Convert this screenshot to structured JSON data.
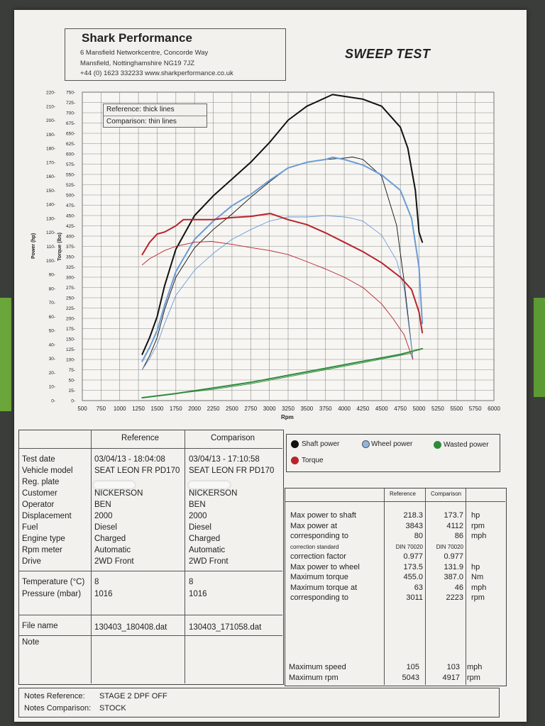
{
  "header": {
    "company": "Shark Performance",
    "address1": "6 Mansfield Networkcentre, Concorde Way",
    "address2": "Mansfield, Nottinghamshire NG19 7JZ",
    "contact": "+44 (0) 1623 332233 www.sharkperformance.co.uk",
    "report_title": "SWEEP TEST"
  },
  "chart_legend": {
    "reference": "Reference: thick lines",
    "comparison": "Comparison: thin lines"
  },
  "series_legend": {
    "shaft": "Shaft power",
    "wheel": "Wheel power",
    "wasted": "Wasted power",
    "torque": "Torque"
  },
  "colors": {
    "shaft": "#111111",
    "wheel": "#6b9bd6",
    "wasted": "#2e8b3a",
    "torque": "#b8232a"
  },
  "chart_data": {
    "type": "line",
    "xlabel": "Rpm",
    "ylabel_power": "Power (hp)",
    "ylabel_torque": "Torque (lbs)",
    "xlim": [
      500,
      6000
    ],
    "power_ylim": [
      0,
      220
    ],
    "torque_ylim": [
      0,
      750
    ],
    "x_ticks": [
      "500",
      "750",
      "1000",
      "1250",
      "1500",
      "1750",
      "2000",
      "2250",
      "2500",
      "2750",
      "3000",
      "3250",
      "3500",
      "3750",
      "4000",
      "4250",
      "4500",
      "4750",
      "5000",
      "5250",
      "5500",
      "5750",
      "6000"
    ],
    "power_ticks": [
      "0",
      "10",
      "20",
      "30",
      "40",
      "50",
      "60",
      "70",
      "80",
      "90",
      "100",
      "110",
      "120",
      "130",
      "140",
      "150",
      "160",
      "170",
      "180",
      "190",
      "200",
      "210",
      "220"
    ],
    "torque_ticks": [
      "0",
      "25",
      "50",
      "75",
      "100",
      "125",
      "150",
      "175",
      "200",
      "225",
      "250",
      "275",
      "300",
      "325",
      "350",
      "375",
      "400",
      "425",
      "450",
      "475",
      "500",
      "525",
      "550",
      "575",
      "600",
      "625",
      "650",
      "675",
      "700",
      "725",
      "750"
    ],
    "grid": true,
    "series": [
      {
        "name": "Shaft power",
        "axis": "power",
        "style": "thick",
        "color": "#111111",
        "x": [
          1300,
          1400,
          1500,
          1600,
          1750,
          2000,
          2250,
          2500,
          2750,
          3000,
          3250,
          3500,
          3750,
          3843,
          4000,
          4250,
          4500,
          4750,
          4850,
          4950,
          5000,
          5043
        ],
        "y": [
          33,
          45,
          60,
          82,
          108,
          132,
          146,
          158,
          170,
          184,
          200,
          210,
          216,
          218.3,
          217,
          215,
          210,
          195,
          180,
          150,
          120,
          113
        ]
      },
      {
        "name": "Shaft power",
        "axis": "power",
        "style": "thin",
        "color": "#111111",
        "x": [
          1300,
          1400,
          1500,
          1600,
          1750,
          2000,
          2250,
          2500,
          2750,
          3000,
          3250,
          3500,
          3750,
          4000,
          4112,
          4250,
          4500,
          4700,
          4800,
          4917
        ],
        "y": [
          22,
          32,
          45,
          65,
          88,
          109,
          122,
          133,
          145,
          156,
          166,
          170,
          172,
          173,
          173.7,
          172,
          160,
          125,
          85,
          30
        ]
      },
      {
        "name": "Wheel power",
        "axis": "power",
        "style": "thick",
        "color": "#6b9bd6",
        "x": [
          1300,
          1400,
          1500,
          1600,
          1750,
          2000,
          2250,
          2500,
          2750,
          3000,
          3250,
          3500,
          3750,
          3843,
          4000,
          4250,
          4500,
          4750,
          4900,
          5000,
          5043
        ],
        "y": [
          28,
          38,
          50,
          68,
          92,
          115,
          128,
          139,
          147,
          157,
          166,
          170,
          172,
          173.5,
          172,
          168,
          161,
          150,
          130,
          95,
          55
        ]
      },
      {
        "name": "Wheel power",
        "axis": "power",
        "style": "thin",
        "color": "#6b9bd6",
        "x": [
          1300,
          1400,
          1500,
          1600,
          1750,
          2000,
          2250,
          2500,
          2750,
          3000,
          3250,
          3500,
          3750,
          4000,
          4112,
          4250,
          4500,
          4700,
          4800,
          4917
        ],
        "y": [
          22,
          30,
          40,
          55,
          75,
          93,
          105,
          115,
          122,
          128,
          131,
          131,
          131.9,
          131,
          130,
          128,
          118,
          100,
          80,
          30
        ]
      },
      {
        "name": "Torque",
        "axis": "torque",
        "style": "thick",
        "color": "#b8232a",
        "x": [
          1300,
          1400,
          1500,
          1600,
          1750,
          1850,
          2000,
          2250,
          2500,
          2750,
          3011,
          3250,
          3500,
          3750,
          4000,
          4250,
          4500,
          4750,
          4900,
          5000,
          5043
        ],
        "y": [
          355,
          385,
          405,
          410,
          425,
          440,
          440,
          440,
          445,
          448,
          455,
          440,
          428,
          408,
          385,
          362,
          335,
          300,
          270,
          215,
          165
        ]
      },
      {
        "name": "Torque",
        "axis": "torque",
        "style": "thin",
        "color": "#b8232a",
        "x": [
          1300,
          1400,
          1500,
          1600,
          1750,
          2000,
          2223,
          2500,
          2750,
          3000,
          3250,
          3500,
          3750,
          4000,
          4250,
          4500,
          4650,
          4800,
          4917
        ],
        "y": [
          330,
          345,
          355,
          365,
          375,
          385,
          387,
          380,
          372,
          365,
          355,
          338,
          320,
          300,
          275,
          235,
          200,
          160,
          100
        ]
      },
      {
        "name": "Wasted power",
        "axis": "power",
        "style": "thick",
        "color": "#2e8b3a",
        "x": [
          1300,
          1750,
          2250,
          2750,
          3250,
          3750,
          4250,
          4750,
          5043
        ],
        "y": [
          2,
          5,
          9,
          13,
          18,
          23,
          28,
          33,
          37
        ]
      },
      {
        "name": "Wasted power",
        "axis": "power",
        "style": "thin",
        "color": "#2e8b3a",
        "x": [
          1300,
          1750,
          2250,
          2750,
          3250,
          3750,
          4250,
          4917
        ],
        "y": [
          2,
          5,
          8,
          12,
          17,
          22,
          27,
          34
        ]
      }
    ]
  },
  "info_table": {
    "col_reference": "Reference",
    "col_comparison": "Comparison",
    "rows": [
      {
        "label": "Test date",
        "ref": "03/04/13 - 18:04:08",
        "cmp": "03/04/13 - 17:10:58"
      },
      {
        "label": "Vehicle model",
        "ref": "SEAT LEON FR PD170",
        "cmp": "SEAT LEON FR PD170"
      },
      {
        "label": "Reg. plate",
        "ref": "",
        "cmp": ""
      },
      {
        "label": "Customer",
        "ref": "NICKERSON",
        "cmp": "NICKERSON"
      },
      {
        "label": "Operator",
        "ref": "BEN",
        "cmp": "BEN"
      },
      {
        "label": "Displacement",
        "ref": "2000",
        "cmp": "2000"
      },
      {
        "label": "Fuel",
        "ref": "Diesel",
        "cmp": "Diesel"
      },
      {
        "label": "Engine type",
        "ref": "Charged",
        "cmp": "Charged"
      },
      {
        "label": "Rpm meter",
        "ref": "Automatic",
        "cmp": "Automatic"
      },
      {
        "label": "Drive",
        "ref": "2WD Front",
        "cmp": "2WD Front"
      }
    ],
    "env_rows": [
      {
        "label": "Temperature (°C)",
        "ref": "8",
        "cmp": "8"
      },
      {
        "label": "Pressure (mbar)",
        "ref": "1016",
        "cmp": "1016"
      }
    ],
    "file_label": "File name",
    "file_ref": "130403_180408.dat",
    "file_cmp": "130403_171058.dat",
    "note_label": "Note"
  },
  "results": {
    "col_reference": "Reference",
    "col_comparison": "Comparison",
    "rows": [
      {
        "label": "Max power to shaft",
        "ref": "218.3",
        "cmp": "173.7",
        "unit": "hp"
      },
      {
        "label": "Max power at",
        "ref": "3843",
        "cmp": "4112",
        "unit": "rpm"
      },
      {
        "label": "corresponding to",
        "ref": "80",
        "cmp": "86",
        "unit": "mph"
      },
      {
        "label": "correction standard",
        "ref": "DIN 70020",
        "cmp": "DIN 70020",
        "unit": "",
        "small": true
      },
      {
        "label": "correction factor",
        "ref": "0.977",
        "cmp": "0.977",
        "unit": ""
      },
      {
        "label": "Max power to wheel",
        "ref": "173.5",
        "cmp": "131.9",
        "unit": "hp"
      },
      {
        "label": "Maximum torque",
        "ref": "455.0",
        "cmp": "387.0",
        "unit": "Nm"
      },
      {
        "label": "Maximum torque at",
        "ref": "63",
        "cmp": "46",
        "unit": "mph"
      },
      {
        "label": "corresponding to",
        "ref": "3011",
        "cmp": "2223",
        "unit": "rpm"
      }
    ],
    "speed_rows": [
      {
        "label": "Maximum speed",
        "ref": "105",
        "cmp": "103",
        "unit": "mph"
      },
      {
        "label": "Maximum rpm",
        "ref": "5043",
        "cmp": "4917",
        "unit": "rpm"
      }
    ]
  },
  "notes": {
    "ref_label": "Notes Reference:",
    "ref_value": "STAGE 2 DPF OFF",
    "cmp_label": "Notes Comparison:",
    "cmp_value": "STOCK"
  }
}
